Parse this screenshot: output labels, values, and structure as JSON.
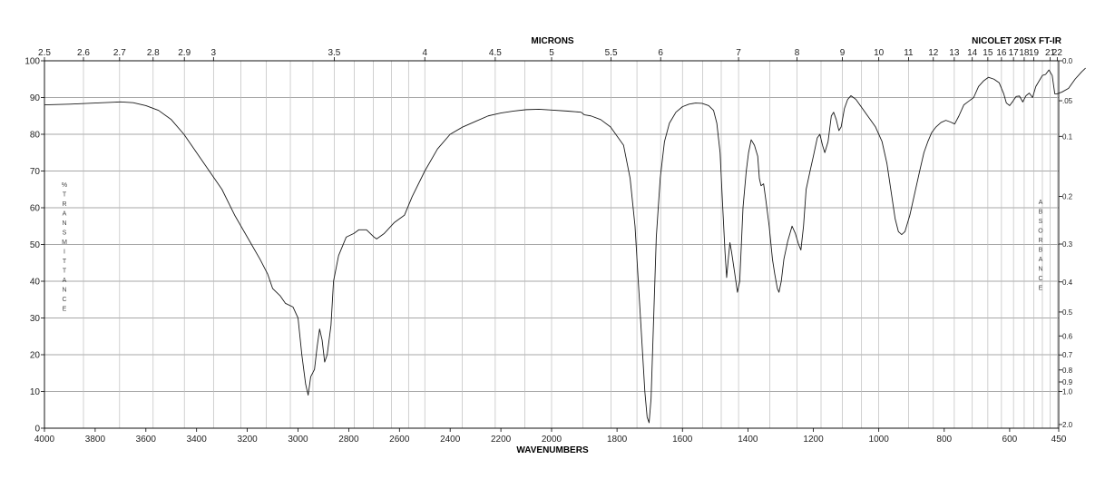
{
  "chart_data": {
    "type": "line",
    "title": "NICOLET 20SX FT-IR",
    "xlabel": "WAVENUMBERS",
    "x2label": "MICRONS",
    "ylabel": "% TRANSMITTANCE",
    "y2label": "ABSORBANCE",
    "xlim": [
      4000,
      450
    ],
    "ylim": [
      0,
      100
    ],
    "x_ticks": [
      4000,
      3800,
      3600,
      3400,
      3200,
      3000,
      2800,
      2600,
      2400,
      2200,
      2000,
      1800,
      1600,
      1400,
      1200,
      1000,
      800,
      600,
      450
    ],
    "micron_ticks": [
      "2.5",
      "2.6",
      "2.7",
      "2.8",
      "2.9",
      "3",
      "3.5",
      "4",
      "4.5",
      "5",
      "5.5",
      "6",
      "7",
      "8",
      "9",
      "10",
      "11",
      "12",
      "13",
      "14",
      "15",
      "16",
      "17",
      "18",
      "19",
      "21",
      "22"
    ],
    "y_ticks": [
      0,
      10,
      20,
      30,
      40,
      50,
      60,
      70,
      80,
      90,
      100
    ],
    "absorbance_ticks": [
      "0.0",
      ".05",
      "0.1",
      "0.2",
      "0.3",
      "0.4",
      "0.5",
      "0.6",
      "0.7",
      "0.8",
      "0.9",
      "1.0",
      "2.0"
    ],
    "grid": true,
    "series": [
      {
        "points": [
          [
            4000,
            88
          ],
          [
            3900,
            88.2
          ],
          [
            3800,
            88.5
          ],
          [
            3700,
            88.8
          ],
          [
            3650,
            88.6
          ],
          [
            3600,
            87.8
          ],
          [
            3550,
            86.5
          ],
          [
            3500,
            84
          ],
          [
            3450,
            80
          ],
          [
            3400,
            75
          ],
          [
            3350,
            70
          ],
          [
            3300,
            65
          ],
          [
            3250,
            58
          ],
          [
            3200,
            52
          ],
          [
            3150,
            46
          ],
          [
            3120,
            42
          ],
          [
            3100,
            38
          ],
          [
            3070,
            36
          ],
          [
            3050,
            34
          ],
          [
            3020,
            33
          ],
          [
            3000,
            30
          ],
          [
            2985,
            20
          ],
          [
            2970,
            12
          ],
          [
            2960,
            9
          ],
          [
            2950,
            14
          ],
          [
            2935,
            16
          ],
          [
            2925,
            22
          ],
          [
            2915,
            27
          ],
          [
            2905,
            24
          ],
          [
            2895,
            18
          ],
          [
            2885,
            20
          ],
          [
            2870,
            28
          ],
          [
            2860,
            40
          ],
          [
            2840,
            47
          ],
          [
            2810,
            52
          ],
          [
            2780,
            53
          ],
          [
            2760,
            54
          ],
          [
            2730,
            54
          ],
          [
            2700,
            52
          ],
          [
            2690,
            51.5
          ],
          [
            2660,
            53
          ],
          [
            2620,
            56
          ],
          [
            2580,
            58
          ],
          [
            2550,
            63
          ],
          [
            2500,
            70
          ],
          [
            2450,
            76
          ],
          [
            2400,
            80
          ],
          [
            2350,
            82
          ],
          [
            2300,
            83.5
          ],
          [
            2250,
            85
          ],
          [
            2200,
            85.8
          ],
          [
            2150,
            86.3
          ],
          [
            2100,
            86.7
          ],
          [
            2050,
            86.8
          ],
          [
            2000,
            86.6
          ],
          [
            1950,
            86.3
          ],
          [
            1910,
            86
          ],
          [
            1900,
            85.3
          ],
          [
            1880,
            85
          ],
          [
            1850,
            84
          ],
          [
            1820,
            82
          ],
          [
            1800,
            79.5
          ],
          [
            1780,
            77
          ],
          [
            1760,
            68
          ],
          [
            1745,
            55
          ],
          [
            1735,
            40
          ],
          [
            1725,
            25
          ],
          [
            1715,
            10
          ],
          [
            1708,
            3
          ],
          [
            1702,
            1.5
          ],
          [
            1696,
            8
          ],
          [
            1688,
            30
          ],
          [
            1680,
            52
          ],
          [
            1668,
            68
          ],
          [
            1655,
            78
          ],
          [
            1640,
            83
          ],
          [
            1620,
            86
          ],
          [
            1600,
            87.5
          ],
          [
            1580,
            88.2
          ],
          [
            1560,
            88.5
          ],
          [
            1540,
            88.4
          ],
          [
            1520,
            87.8
          ],
          [
            1505,
            86.5
          ],
          [
            1495,
            83
          ],
          [
            1485,
            75
          ],
          [
            1478,
            62
          ],
          [
            1470,
            48
          ],
          [
            1465,
            41
          ],
          [
            1460,
            46
          ],
          [
            1455,
            50.5
          ],
          [
            1450,
            48
          ],
          [
            1440,
            42
          ],
          [
            1432,
            37
          ],
          [
            1425,
            40
          ],
          [
            1415,
            60
          ],
          [
            1405,
            70
          ],
          [
            1398,
            75
          ],
          [
            1390,
            78.5
          ],
          [
            1380,
            77
          ],
          [
            1370,
            74
          ],
          [
            1365,
            68
          ],
          [
            1360,
            66
          ],
          [
            1352,
            66.5
          ],
          [
            1345,
            62
          ],
          [
            1335,
            55
          ],
          [
            1325,
            46
          ],
          [
            1318,
            42
          ],
          [
            1310,
            38
          ],
          [
            1305,
            37
          ],
          [
            1298,
            40
          ],
          [
            1290,
            46
          ],
          [
            1278,
            51
          ],
          [
            1265,
            55
          ],
          [
            1255,
            53
          ],
          [
            1245,
            50
          ],
          [
            1238,
            48.5
          ],
          [
            1230,
            55
          ],
          [
            1222,
            65
          ],
          [
            1210,
            70
          ],
          [
            1200,
            74
          ],
          [
            1188,
            79
          ],
          [
            1180,
            80
          ],
          [
            1172,
            77
          ],
          [
            1165,
            75
          ],
          [
            1155,
            78
          ],
          [
            1145,
            85
          ],
          [
            1138,
            86
          ],
          [
            1130,
            84
          ],
          [
            1122,
            81
          ],
          [
            1115,
            82
          ],
          [
            1105,
            87
          ],
          [
            1095,
            89.5
          ],
          [
            1085,
            90.5
          ],
          [
            1070,
            89.5
          ],
          [
            1050,
            87
          ],
          [
            1030,
            84.5
          ],
          [
            1010,
            82
          ],
          [
            990,
            78
          ],
          [
            975,
            72
          ],
          [
            960,
            63
          ],
          [
            950,
            57
          ],
          [
            940,
            53.5
          ],
          [
            930,
            52.7
          ],
          [
            920,
            53.5
          ],
          [
            905,
            58
          ],
          [
            890,
            64
          ],
          [
            875,
            70
          ],
          [
            862,
            75
          ],
          [
            850,
            78
          ],
          [
            838,
            80.5
          ],
          [
            825,
            82
          ],
          [
            810,
            83.2
          ],
          [
            795,
            83.8
          ],
          [
            780,
            83.3
          ],
          [
            768,
            82.8
          ],
          [
            755,
            85
          ],
          [
            740,
            88
          ],
          [
            725,
            89
          ],
          [
            710,
            90
          ],
          [
            695,
            93
          ],
          [
            680,
            94.5
          ],
          [
            665,
            95.5
          ],
          [
            648,
            95
          ],
          [
            632,
            94
          ],
          [
            618,
            91
          ],
          [
            610,
            88.5
          ],
          [
            600,
            87.8
          ],
          [
            590,
            89
          ],
          [
            580,
            90.3
          ],
          [
            570,
            90.4
          ],
          [
            560,
            88.8
          ],
          [
            550,
            90.5
          ],
          [
            540,
            91.2
          ],
          [
            530,
            90
          ],
          [
            520,
            93
          ],
          [
            510,
            94.5
          ],
          [
            500,
            96
          ],
          [
            490,
            96.3
          ],
          [
            480,
            97.5
          ],
          [
            470,
            96
          ],
          [
            462,
            91
          ],
          [
            455,
            91
          ],
          [
            440,
            91.5
          ],
          [
            420,
            92.5
          ],
          [
            400,
            95
          ],
          [
            380,
            97
          ],
          [
            368,
            98
          ]
        ]
      }
    ]
  }
}
